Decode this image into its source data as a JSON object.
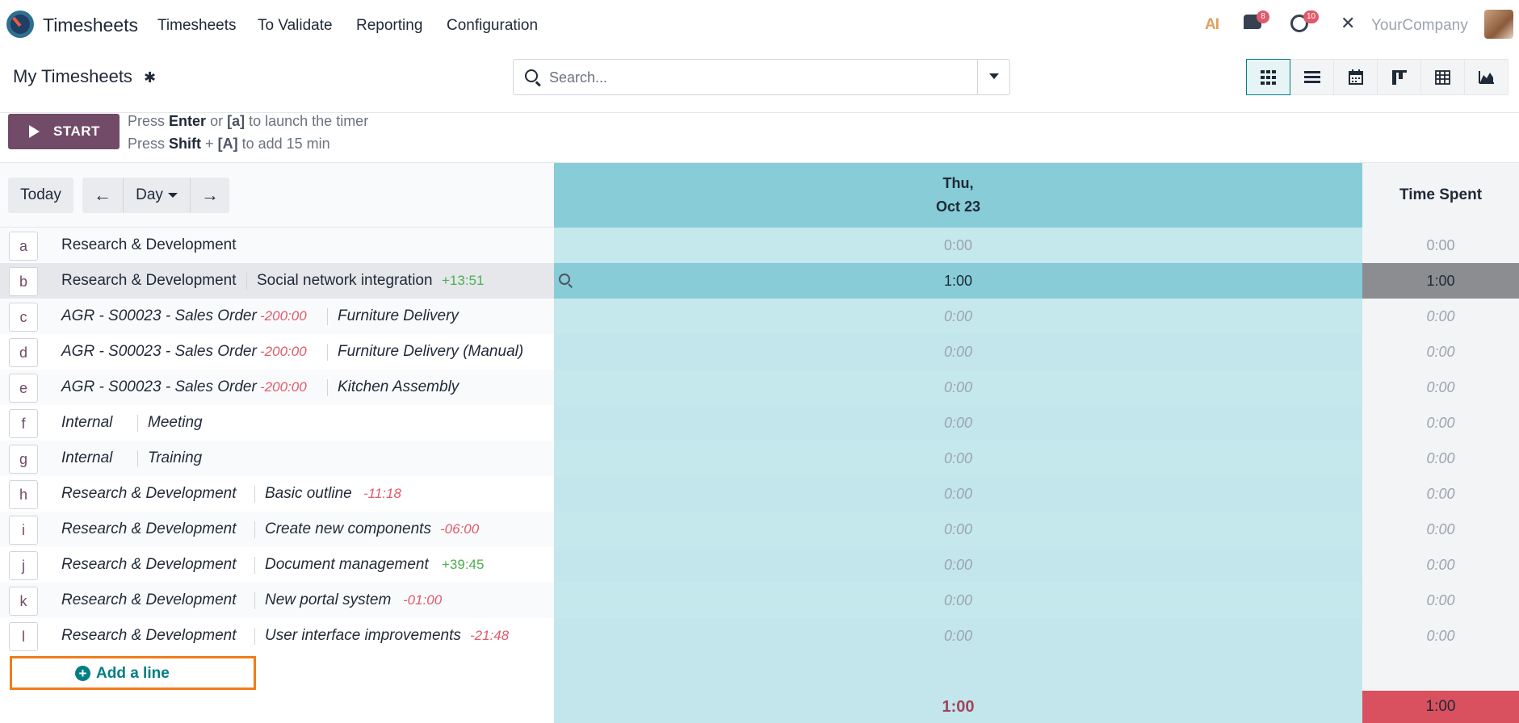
{
  "navbar": {
    "app_name": "Timesheets",
    "menu": [
      "Timesheets",
      "To Validate",
      "Reporting",
      "Configuration"
    ],
    "ai_label": "AI",
    "chat_badge": "8",
    "activity_badge": "10",
    "company": "YourCompany"
  },
  "control": {
    "title": "My Timesheets",
    "search_placeholder": "Search...",
    "views": [
      "grid-icon",
      "list-icon",
      "calendar-icon",
      "kanban-icon",
      "pivot-icon",
      "graph-icon"
    ],
    "active_view": "grid-icon"
  },
  "timer": {
    "start_label": "START",
    "hint1": {
      "press": "Press",
      "key1": "Enter",
      "or": "or",
      "key2": "[a]",
      "rest": "to launch the timer"
    },
    "hint2": {
      "press": "Press",
      "key1": "Shift",
      "plus": "+",
      "key2": "[A]",
      "rest": "to add 15 min"
    }
  },
  "grid": {
    "today_label": "Today",
    "range_label": "Day",
    "day_header_line1": "Thu,",
    "day_header_line2": "Oct 23",
    "total_header": "Time Spent",
    "rows": [
      {
        "key": "a",
        "project": "Research & Development",
        "task": "",
        "remaining": "",
        "value": "0:00",
        "total": "0:00"
      },
      {
        "key": "b",
        "project": "Research & Development",
        "task": "Social network integration",
        "remaining": "+13:51",
        "value": "1:00",
        "total": "1:00"
      },
      {
        "key": "c",
        "project": "AGR - S00023 - Sales Order",
        "project_remaining": "-200:00",
        "task": "Furniture Delivery",
        "value": "0:00",
        "total": "0:00"
      },
      {
        "key": "d",
        "project": "AGR - S00023 - Sales Order",
        "project_remaining": "-200:00",
        "task": "Furniture Delivery (Manual)",
        "value": "0:00",
        "total": "0:00"
      },
      {
        "key": "e",
        "project": "AGR - S00023 - Sales Order",
        "project_remaining": "-200:00",
        "task": "Kitchen Assembly",
        "value": "0:00",
        "total": "0:00"
      },
      {
        "key": "f",
        "project": "Internal",
        "task": "Meeting",
        "value": "0:00",
        "total": "0:00"
      },
      {
        "key": "g",
        "project": "Internal",
        "task": "Training",
        "value": "0:00",
        "total": "0:00"
      },
      {
        "key": "h",
        "project": "Research & Development",
        "task": "Basic outline",
        "remaining": "-11:18",
        "value": "0:00",
        "total": "0:00"
      },
      {
        "key": "i",
        "project": "Research & Development",
        "task": "Create new components",
        "remaining": "-06:00",
        "value": "0:00",
        "total": "0:00"
      },
      {
        "key": "j",
        "project": "Research & Development",
        "task": "Document management",
        "remaining": "+39:45",
        "value": "0:00",
        "total": "0:00"
      },
      {
        "key": "k",
        "project": "Research & Development",
        "task": "New portal system",
        "remaining": "-01:00",
        "value": "0:00",
        "total": "0:00"
      },
      {
        "key": "l",
        "project": "Research & Development",
        "task": "User interface improvements",
        "remaining": "-21:48",
        "value": "0:00",
        "total": "0:00"
      }
    ],
    "add_line_label": "Add a line",
    "footer_day_total": "1:00",
    "footer_grand_total": "1:00"
  },
  "colors": {
    "brand": "#714b67",
    "accent": "#017e84",
    "day_column": "#87ccd7",
    "highlight": "#f07c1a",
    "total_alert": "#d9505e"
  }
}
